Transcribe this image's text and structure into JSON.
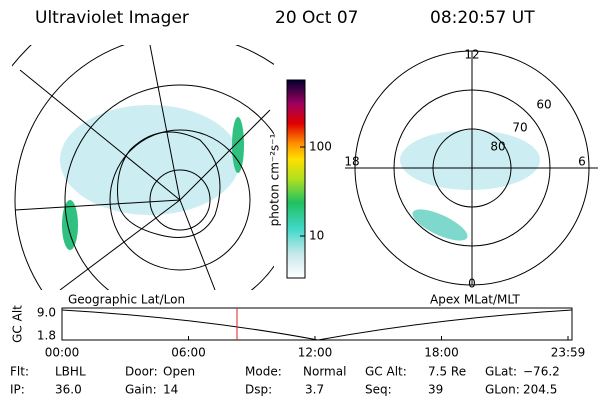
{
  "header": {
    "instrument": "Ultraviolet Imager",
    "date": "20 Oct 07",
    "time": "08:20:57 UT"
  },
  "colorbar": {
    "label": "photon cm⁻²s⁻¹",
    "ticks": [
      100,
      10
    ]
  },
  "left_panel": {
    "title": "Geographic Lat/Lon"
  },
  "right_panel": {
    "title": "Apex MLat/MLT",
    "mlt_labels": [
      12,
      18,
      6,
      0
    ],
    "lat_labels": [
      60,
      70,
      80
    ]
  },
  "altitude_plot": {
    "ylabel": "GC Alt",
    "yticks": [
      "9.0",
      "1.8"
    ],
    "xticks": [
      "00:00",
      "06:00",
      "12:00",
      "18:00",
      "23:59"
    ]
  },
  "info": [
    [
      {
        "label": "Flt:",
        "value": "LBHL"
      },
      {
        "label": "Door:",
        "value": "Open"
      },
      {
        "label": "Mode:",
        "value": "Normal"
      },
      {
        "label": "GC Alt:",
        "value": "7.5 Re"
      },
      {
        "label": "GLat:",
        "value": "−76.2"
      }
    ],
    [
      {
        "label": "IP:",
        "value": "36.0"
      },
      {
        "label": "Gain:",
        "value": "14"
      },
      {
        "label": "Dsp:",
        "value": "3.7"
      },
      {
        "label": "Seq:",
        "value": "39"
      },
      {
        "label": "GLon:",
        "value": "204.5"
      }
    ]
  ]
}
